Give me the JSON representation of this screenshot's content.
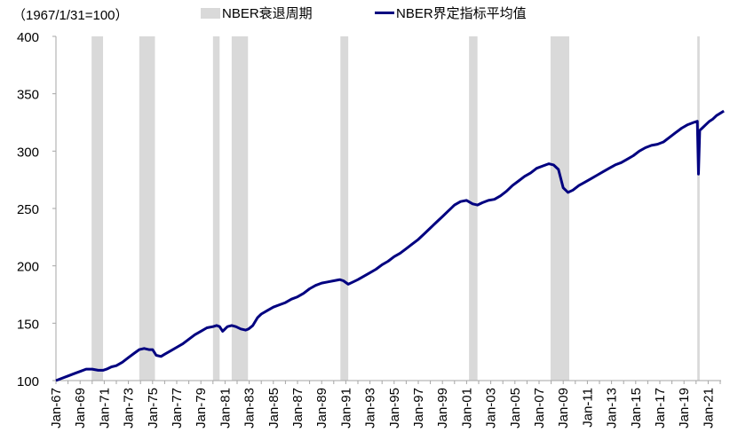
{
  "unit_label": "（1967/1/31=100）",
  "legend": {
    "recession": "NBER衰退周期",
    "index": "NBER界定指标平均值"
  },
  "colors": {
    "line": "#000080",
    "recession": "#d9d9d9",
    "axis": "#a6a6a6"
  },
  "chart_data": {
    "type": "line",
    "title": "",
    "xlabel": "",
    "ylabel": "（1967/1/31=100）",
    "ylim": [
      100,
      400
    ],
    "yticks": [
      100,
      150,
      200,
      250,
      300,
      350,
      400
    ],
    "xlim": [
      1967.0,
      2022.3
    ],
    "xtick_labels": [
      "Jan-67",
      "Jan-69",
      "Jan-71",
      "Jan-73",
      "Jan-75",
      "Jan-77",
      "Jan-79",
      "Jan-81",
      "Jan-83",
      "Jan-85",
      "Jan-87",
      "Jan-89",
      "Jan-91",
      "Jan-93",
      "Jan-95",
      "Jan-97",
      "Jan-99",
      "Jan-01",
      "Jan-03",
      "Jan-05",
      "Jan-07",
      "Jan-09",
      "Jan-11",
      "Jan-13",
      "Jan-15",
      "Jan-17",
      "Jan-19",
      "Jan-21"
    ],
    "grid": false,
    "legend_position": "top",
    "recessions": [
      [
        1969.95,
        1970.9
      ],
      [
        1973.9,
        1975.2
      ],
      [
        1980.0,
        1980.55
      ],
      [
        1981.55,
        1982.9
      ],
      [
        1990.55,
        1991.2
      ],
      [
        2001.2,
        2001.9
      ],
      [
        2007.95,
        2009.5
      ],
      [
        2020.1,
        2020.3
      ]
    ],
    "series": [
      {
        "name": "NBER界定指标平均值",
        "x": [
          1967.0,
          1967.5,
          1968.0,
          1968.5,
          1969.0,
          1969.5,
          1970.0,
          1970.5,
          1970.9,
          1971.2,
          1971.6,
          1972.0,
          1972.5,
          1973.0,
          1973.5,
          1973.9,
          1974.3,
          1974.7,
          1975.0,
          1975.3,
          1975.7,
          1976.0,
          1976.5,
          1977.0,
          1977.5,
          1978.0,
          1978.5,
          1979.0,
          1979.5,
          1980.0,
          1980.3,
          1980.55,
          1980.8,
          1981.2,
          1981.55,
          1981.9,
          1982.3,
          1982.7,
          1982.95,
          1983.3,
          1983.7,
          1984.0,
          1984.5,
          1985.0,
          1985.5,
          1986.0,
          1986.5,
          1987.0,
          1987.5,
          1988.0,
          1988.5,
          1989.0,
          1989.5,
          1990.0,
          1990.5,
          1990.8,
          1991.2,
          1991.6,
          1992.0,
          1992.5,
          1993.0,
          1993.5,
          1994.0,
          1994.5,
          1995.0,
          1995.5,
          1996.0,
          1996.5,
          1997.0,
          1997.5,
          1998.0,
          1998.5,
          1999.0,
          1999.5,
          2000.0,
          2000.5,
          2001.0,
          2001.5,
          2001.9,
          2002.3,
          2002.8,
          2003.3,
          2003.8,
          2004.3,
          2004.8,
          2005.3,
          2005.8,
          2006.3,
          2006.8,
          2007.3,
          2007.8,
          2008.2,
          2008.6,
          2009.0,
          2009.4,
          2009.8,
          2010.3,
          2010.8,
          2011.3,
          2011.8,
          2012.3,
          2012.8,
          2013.3,
          2013.8,
          2014.3,
          2014.8,
          2015.3,
          2015.8,
          2016.3,
          2016.8,
          2017.3,
          2017.8,
          2018.3,
          2018.8,
          2019.3,
          2019.8,
          2020.1,
          2020.2,
          2020.3,
          2020.5,
          2020.8,
          2021.1,
          2021.4,
          2021.7,
          2022.0,
          2022.3
        ],
        "values": [
          100,
          102,
          104,
          106,
          108,
          110,
          110,
          109,
          109,
          110,
          112,
          113,
          116,
          120,
          124,
          127,
          128,
          127,
          127,
          122,
          121,
          123,
          126,
          129,
          132,
          136,
          140,
          143,
          146,
          147,
          148,
          147,
          143,
          147,
          148,
          147,
          145,
          144,
          145,
          148,
          155,
          158,
          161,
          164,
          166,
          168,
          171,
          173,
          176,
          180,
          183,
          185,
          186,
          187,
          188,
          187,
          184,
          186,
          188,
          191,
          194,
          197,
          201,
          204,
          208,
          211,
          215,
          219,
          223,
          228,
          233,
          238,
          243,
          248,
          253,
          256,
          257,
          254,
          253,
          255,
          257,
          258,
          261,
          265,
          270,
          274,
          278,
          281,
          285,
          287,
          289,
          288,
          284,
          268,
          264,
          266,
          270,
          273,
          276,
          279,
          282,
          285,
          288,
          290,
          293,
          296,
          300,
          303,
          305,
          306,
          308,
          312,
          316,
          320,
          323,
          325,
          326,
          280,
          318,
          320,
          323,
          326,
          328,
          331,
          333,
          335
        ]
      }
    ]
  }
}
